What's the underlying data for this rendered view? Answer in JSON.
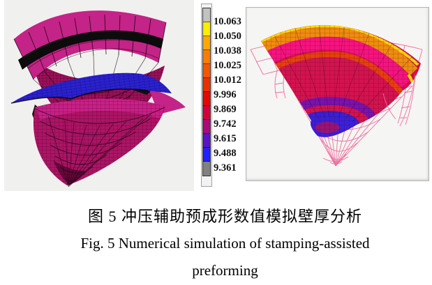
{
  "caption": {
    "line1_zh": "图 5  冲压辅助预成形数值模拟壁厚分析",
    "line2_en": "Fig. 5 Numerical simulation of stamping-assisted",
    "line3_en": "preforming"
  },
  "colorbar": {
    "labels": [
      "10.063",
      "10.050",
      "10.038",
      "10.025",
      "10.012",
      "9.996",
      "9.869",
      "9.742",
      "9.615",
      "9.488",
      "9.361"
    ],
    "segment_colors": [
      "#c2c2c2",
      "#ffed00",
      "#ffa800",
      "#fb7d00",
      "#f55600",
      "#ed2f00",
      "#e60800",
      "#d4003a",
      "#ab0a78",
      "#5a13c6",
      "#2121ff",
      "#818181"
    ]
  },
  "palette": {
    "page_bg": "#ffffff",
    "left_bg": "#f0f0ee",
    "panel_bg": "#f5f5f3",
    "panel_border": "#b5b5b5",
    "fan_magenta": "#c42387",
    "interior_crimson": "#9c1058",
    "sheet_blue": "#2b21d0",
    "bowl_crimson": "#ad1465",
    "bowl_band": "#ca2189",
    "black_band": "#0c0c0c",
    "wire_pink": "#ee6f9f",
    "surface_orange": "#f08b10",
    "surface_yellow": "#ffdd00",
    "surface_hotpink": "#f6137f",
    "surface_red": "#e8400c",
    "surface_crimson": "#d31350",
    "surface_purple": "#7a12ad",
    "surface_blue": "#3a20d8"
  },
  "chart_data": {
    "type": "heatmap",
    "title": "图 5 冲压辅助预成形数值模拟壁厚分析 / Fig. 5 Numerical simulation of stamping-assisted preforming",
    "legend_values": [
      10.063,
      10.05,
      10.038,
      10.025,
      10.012,
      9.996,
      9.869,
      9.742,
      9.615,
      9.488,
      9.361
    ],
    "value_range": [
      9.361,
      10.063
    ],
    "legend_colors_top_to_bottom": [
      "#c2c2c2",
      "#ffed00",
      "#ffa800",
      "#fb7d00",
      "#f55600",
      "#ed2f00",
      "#e60800",
      "#d4003a",
      "#ab0a78",
      "#5a13c6",
      "#2121ff",
      "#818181"
    ],
    "legend_position": "center, between left simulation view and right contour panel",
    "grid": false
  }
}
